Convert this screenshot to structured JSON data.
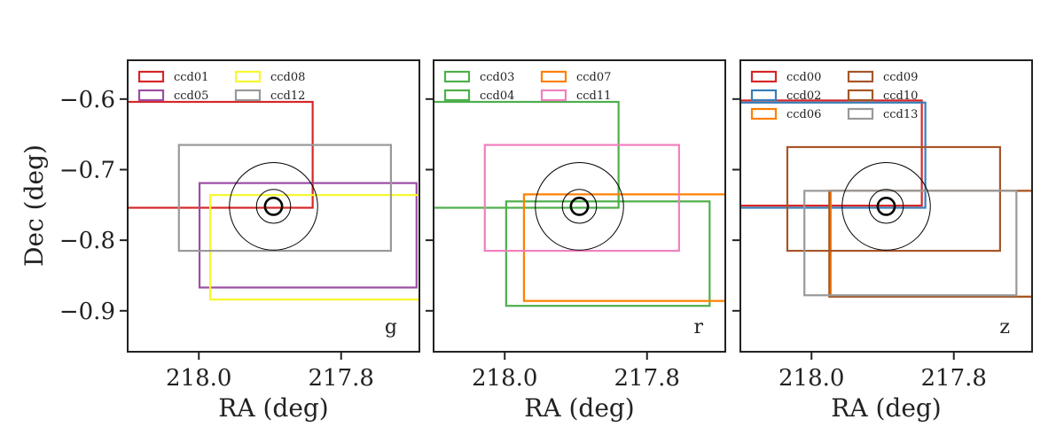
{
  "chart_data": {
    "type": "line",
    "ylabel": "Dec (deg)",
    "xlabel": "RA (deg)",
    "xlim": [
      218.1,
      217.69
    ],
    "ylim": [
      -0.958,
      -0.545
    ],
    "x_ticks": [
      218.0,
      217.8
    ],
    "x_tick_labels": [
      "218.0",
      "217.8"
    ],
    "y_ticks": [
      -0.6,
      -0.7,
      -0.8,
      -0.9
    ],
    "y_tick_labels": [
      "−0.6",
      "−0.7",
      "−0.8",
      "−0.9"
    ],
    "target": {
      "ra": 217.895,
      "dec": -0.752,
      "circles_radius_deg": [
        0.012,
        0.024,
        0.062
      ]
    },
    "panels": [
      {
        "band": "g",
        "legend_columns": 2,
        "ccds": [
          {
            "name": "ccd01",
            "color": "#d62728",
            "ra_min": 217.84,
            "ra_max": 218.11,
            "dec_min": -0.754,
            "dec_max": -0.604
          },
          {
            "name": "ccd05",
            "color": "#9b4ea3",
            "ra_min": 217.694,
            "ra_max": 217.999,
            "dec_min": -0.867,
            "dec_max": -0.719
          },
          {
            "name": "ccd08",
            "color": "#f7f72e",
            "ra_min": 217.68,
            "ra_max": 217.984,
            "dec_min": -0.884,
            "dec_max": -0.736
          },
          {
            "name": "ccd12",
            "color": "#999999",
            "ra_min": 217.73,
            "ra_max": 218.028,
            "dec_min": -0.815,
            "dec_max": -0.665
          }
        ]
      },
      {
        "band": "r",
        "legend_columns": 2,
        "ccds": [
          {
            "name": "ccd03",
            "color": "#4daf4a",
            "ra_min": 217.84,
            "ra_max": 218.11,
            "dec_min": -0.754,
            "dec_max": -0.604
          },
          {
            "name": "ccd04",
            "color": "#4daf4a",
            "ra_min": 217.712,
            "ra_max": 217.998,
            "dec_min": -0.893,
            "dec_max": -0.745
          },
          {
            "name": "ccd07",
            "color": "#ff7f00",
            "ra_min": 217.68,
            "ra_max": 217.973,
            "dec_min": -0.886,
            "dec_max": -0.735
          },
          {
            "name": "ccd11",
            "color": "#f17fbf",
            "ra_min": 217.755,
            "ra_max": 218.028,
            "dec_min": -0.815,
            "dec_max": -0.665
          }
        ]
      },
      {
        "band": "z",
        "legend_columns": 2,
        "ccds": [
          {
            "name": "ccd00",
            "color": "#d62728",
            "ra_min": 217.845,
            "ra_max": 218.11,
            "dec_min": -0.751,
            "dec_max": -0.602
          },
          {
            "name": "ccd02",
            "color": "#377eb8",
            "ra_min": 217.84,
            "ra_max": 218.11,
            "dec_min": -0.754,
            "dec_max": -0.605
          },
          {
            "name": "ccd06",
            "color": "#ff7f00",
            "ra_min": 217.68,
            "ra_max": 217.973,
            "dec_min": -0.88,
            "dec_max": -0.73
          },
          {
            "name": "ccd09",
            "color": "#a65628",
            "ra_min": 217.735,
            "ra_max": 218.034,
            "dec_min": -0.815,
            "dec_max": -0.668
          },
          {
            "name": "ccd10",
            "color": "#a65628",
            "ra_min": 217.68,
            "ra_max": 217.975,
            "dec_min": -0.88,
            "dec_max": -0.73
          },
          {
            "name": "ccd13",
            "color": "#999999",
            "ra_min": 217.712,
            "ra_max": 218.01,
            "dec_min": -0.878,
            "dec_max": -0.73
          }
        ]
      }
    ]
  }
}
